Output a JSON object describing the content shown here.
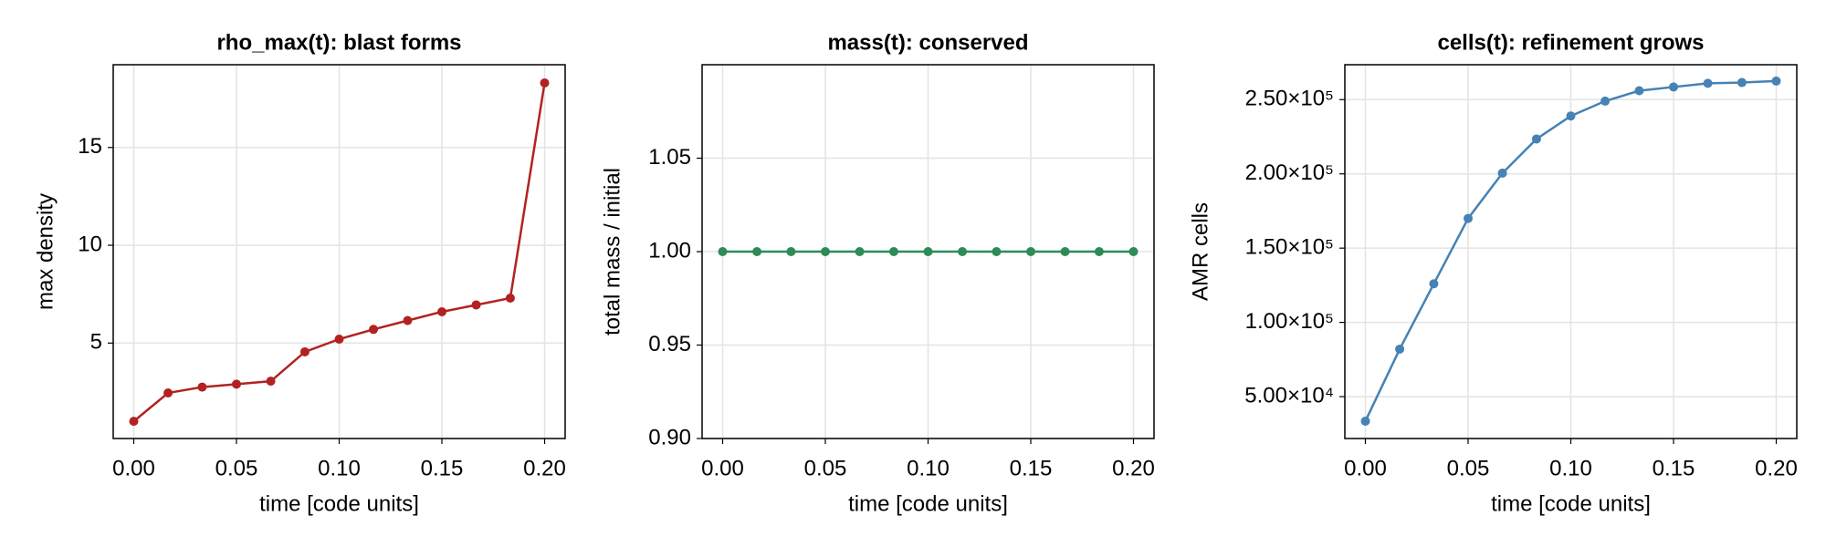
{
  "chart_data": [
    {
      "type": "line",
      "title": "rho_max(t): blast forms",
      "xlabel": "time [code units]",
      "ylabel": "max density",
      "x": [
        0,
        0.0167,
        0.0333,
        0.05,
        0.0667,
        0.0833,
        0.1,
        0.1167,
        0.1333,
        0.15,
        0.1667,
        0.1833,
        0.2
      ],
      "values": [
        1.0,
        2.45,
        2.75,
        2.9,
        3.05,
        4.55,
        5.2,
        5.7,
        6.15,
        6.6,
        6.95,
        7.3,
        18.3
      ],
      "color": "#b22222",
      "grid": true,
      "xlim": [
        -0.01,
        0.21
      ],
      "xticks": [
        {
          "value": 0,
          "label": "0.00"
        },
        {
          "value": 0.05,
          "label": "0.05"
        },
        {
          "value": 0.1,
          "label": "0.10"
        },
        {
          "value": 0.15,
          "label": "0.15"
        },
        {
          "value": 0.2,
          "label": "0.20"
        }
      ],
      "ylim": [
        0.12,
        19.23
      ],
      "yticks": [
        5,
        10,
        15
      ]
    },
    {
      "type": "line",
      "title": "mass(t): conserved",
      "xlabel": "time [code units]",
      "ylabel": "total mass / initial",
      "x": [
        0,
        0.0167,
        0.0333,
        0.05,
        0.0667,
        0.0833,
        0.1,
        0.1167,
        0.1333,
        0.15,
        0.1667,
        0.1833,
        0.2
      ],
      "values": [
        1.0,
        1.0,
        1.0,
        1.0,
        1.0,
        1.0,
        1.0,
        1.0,
        1.0,
        1.0,
        1.0,
        1.0,
        1.0
      ],
      "color": "#2e8b57",
      "grid": true,
      "xlim": [
        -0.01,
        0.21
      ],
      "xticks": [
        {
          "value": 0,
          "label": "0.00"
        },
        {
          "value": 0.05,
          "label": "0.05"
        },
        {
          "value": 0.1,
          "label": "0.10"
        },
        {
          "value": 0.15,
          "label": "0.15"
        },
        {
          "value": 0.2,
          "label": "0.20"
        }
      ],
      "ylim": [
        0.9,
        1.1
      ],
      "yticks": [
        {
          "value": 0.9,
          "label": "0.90"
        },
        0.95,
        {
          "value": 1.0,
          "label": "1.00"
        },
        1.05
      ]
    },
    {
      "type": "line",
      "title": "cells(t): refinement grows",
      "xlabel": "time [code units]",
      "ylabel": "AMR cells",
      "x": [
        0,
        0.0167,
        0.0333,
        0.05,
        0.0667,
        0.0833,
        0.1,
        0.1167,
        0.1333,
        0.15,
        0.1667,
        0.1833,
        0.2
      ],
      "values": [
        33500,
        82000,
        126000,
        170000,
        200500,
        223500,
        239000,
        249000,
        256000,
        258500,
        261000,
        261500,
        262500
      ],
      "color": "#4682b4",
      "grid": true,
      "xlim": [
        -0.01,
        0.21
      ],
      "xticks": [
        {
          "value": 0,
          "label": "0.00"
        },
        {
          "value": 0.05,
          "label": "0.05"
        },
        {
          "value": 0.1,
          "label": "0.10"
        },
        {
          "value": 0.15,
          "label": "0.15"
        },
        {
          "value": 0.2,
          "label": "0.20"
        }
      ],
      "ylim": [
        21800,
        273500
      ],
      "yticks": [
        {
          "value": 50000,
          "label": "5.00×10⁴"
        },
        {
          "value": 100000,
          "label": "1.00×10⁵"
        },
        {
          "value": 150000,
          "label": "1.50×10⁵"
        },
        {
          "value": 200000,
          "label": "2.00×10⁵"
        },
        {
          "value": 250000,
          "label": "2.50×10⁵"
        }
      ]
    }
  ]
}
